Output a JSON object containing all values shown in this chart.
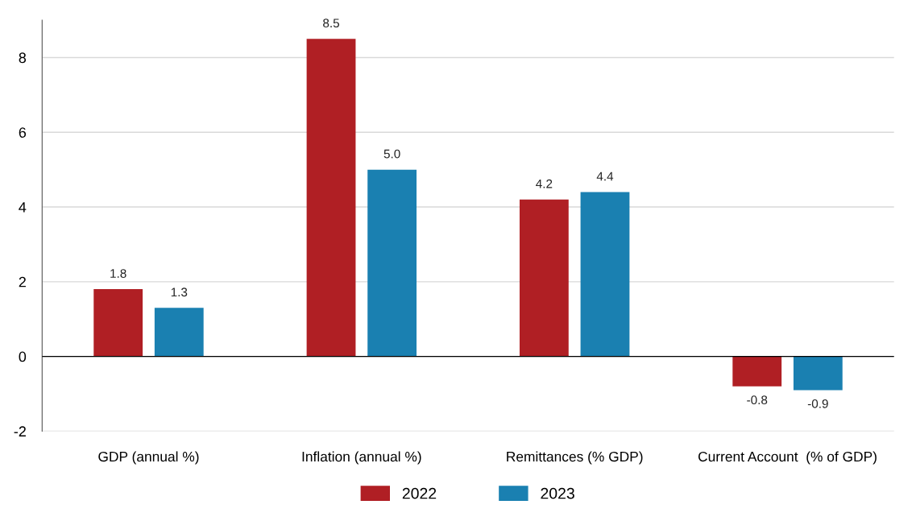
{
  "chart_data": {
    "type": "bar",
    "categories": [
      "GDP (annual %)",
      "Inflation (annual %)",
      "Remittances (% GDP)",
      "Current Account  (% of GDP)"
    ],
    "series": [
      {
        "name": "2022",
        "color": "#b01f24",
        "values": [
          1.8,
          8.5,
          4.2,
          -0.8
        ],
        "value_labels": [
          "1.8",
          "8.5",
          "4.2",
          "-0.8"
        ]
      },
      {
        "name": "2023",
        "color": "#1a80b1",
        "values": [
          1.3,
          5.0,
          4.4,
          -0.9
        ],
        "value_labels": [
          "1.3",
          "5.0",
          "4.4",
          "-0.9"
        ]
      }
    ],
    "ylim": [
      -2,
      9
    ],
    "yticks": [
      -2,
      0,
      2,
      4,
      6,
      8
    ],
    "grid": "y",
    "legend": "bottom"
  }
}
